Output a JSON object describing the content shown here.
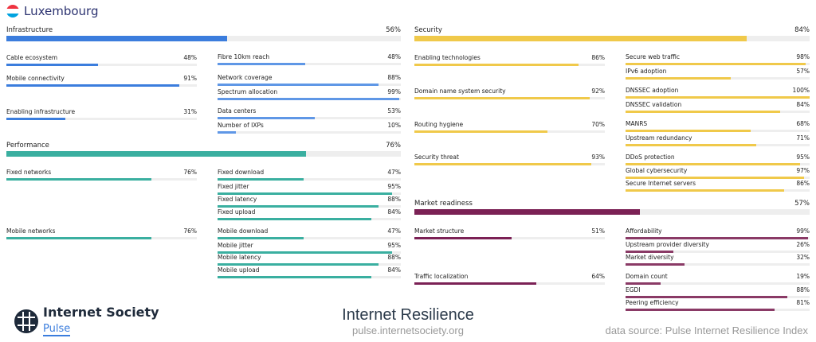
{
  "country": "Luxembourg",
  "flag_colors": [
    "#ef3340",
    "#ffffff",
    "#00a3e0"
  ],
  "pillars": [
    {
      "id": "infrastructure",
      "label": "Infrastructure",
      "value": "56%",
      "pct": 56,
      "color": "#3b7ddd",
      "light": "#5f97e6",
      "groups": [
        {
          "label": "Cable ecosystem",
          "value": "48%",
          "pct": 48,
          "subs": [
            {
              "label": "Fibre 10km reach",
              "value": "48%",
              "pct": 48
            }
          ]
        },
        {
          "label": "Mobile connectivity",
          "value": "91%",
          "pct": 91,
          "subs": [
            {
              "label": "Network coverage",
              "value": "88%",
              "pct": 88
            },
            {
              "label": "Spectrum allocation",
              "value": "99%",
              "pct": 99
            }
          ]
        },
        {
          "label": "Enabling infrastructure",
          "value": "31%",
          "pct": 31,
          "subs": [
            {
              "label": "Data centers",
              "value": "53%",
              "pct": 53
            },
            {
              "label": "Number of IXPs",
              "value": "10%",
              "pct": 10
            }
          ]
        }
      ]
    },
    {
      "id": "performance",
      "label": "Performance",
      "value": "76%",
      "pct": 76,
      "color": "#3aafa0",
      "light": "#3aafa0",
      "groups": [
        {
          "label": "Fixed networks",
          "value": "76%",
          "pct": 76,
          "subs": [
            {
              "label": "Fixed download",
              "value": "47%",
              "pct": 47
            },
            {
              "label": "Fixed jitter",
              "value": "95%",
              "pct": 95
            },
            {
              "label": "Fixed latency",
              "value": "88%",
              "pct": 88
            },
            {
              "label": "Fixed upload",
              "value": "84%",
              "pct": 84
            }
          ]
        },
        {
          "label": "Mobile networks",
          "value": "76%",
          "pct": 76,
          "subs": [
            {
              "label": "Mobile download",
              "value": "47%",
              "pct": 47
            },
            {
              "label": "Mobile jitter",
              "value": "95%",
              "pct": 95
            },
            {
              "label": "Mobile latency",
              "value": "88%",
              "pct": 88
            },
            {
              "label": "Mobile upload",
              "value": "84%",
              "pct": 84
            }
          ]
        }
      ]
    },
    {
      "id": "security",
      "label": "Security",
      "value": "84%",
      "pct": 84,
      "color": "#f0c94a",
      "light": "#f0c94a",
      "groups": [
        {
          "label": "Enabling technologies",
          "value": "86%",
          "pct": 86,
          "subs": [
            {
              "label": "Secure web traffic",
              "value": "98%",
              "pct": 98
            },
            {
              "label": "IPv6 adoption",
              "value": "57%",
              "pct": 57
            }
          ]
        },
        {
          "label": "Domain name system security",
          "value": "92%",
          "pct": 92,
          "subs": [
            {
              "label": "DNSSEC adoption",
              "value": "100%",
              "pct": 100
            },
            {
              "label": "DNSSEC validation",
              "value": "84%",
              "pct": 84
            }
          ]
        },
        {
          "label": "Routing hygiene",
          "value": "70%",
          "pct": 70,
          "subs": [
            {
              "label": "MANRS",
              "value": "68%",
              "pct": 68
            },
            {
              "label": "Upstream redundancy",
              "value": "71%",
              "pct": 71
            }
          ]
        },
        {
          "label": "Security threat",
          "value": "93%",
          "pct": 93,
          "subs": [
            {
              "label": "DDoS protection",
              "value": "95%",
              "pct": 95
            },
            {
              "label": "Global cybersecurity",
              "value": "97%",
              "pct": 97
            },
            {
              "label": "Secure Internet servers",
              "value": "86%",
              "pct": 86
            }
          ]
        }
      ]
    },
    {
      "id": "market-readiness",
      "label": "Market readiness",
      "value": "57%",
      "pct": 57,
      "color": "#7b2155",
      "light": "#8a3a66",
      "groups": [
        {
          "label": "Market structure",
          "value": "51%",
          "pct": 51,
          "subs": [
            {
              "label": "Affordability",
              "value": "99%",
              "pct": 99
            },
            {
              "label": "Upstream provider diversity",
              "value": "26%",
              "pct": 26
            },
            {
              "label": "Market diversity",
              "value": "32%",
              "pct": 32
            }
          ]
        },
        {
          "label": "Traffic localization",
          "value": "64%",
          "pct": 64,
          "subs": [
            {
              "label": "Domain count",
              "value": "19%",
              "pct": 19
            },
            {
              "label": "EGDI",
              "value": "88%",
              "pct": 88
            },
            {
              "label": "Peering efficiency",
              "value": "81%",
              "pct": 81
            }
          ]
        }
      ]
    }
  ],
  "footer": {
    "org": "Internet Society",
    "product": "Pulse",
    "title": "Internet Resilience",
    "url": "pulse.internetsociety.org",
    "source": "data source: Pulse Internet Resilience Index"
  }
}
